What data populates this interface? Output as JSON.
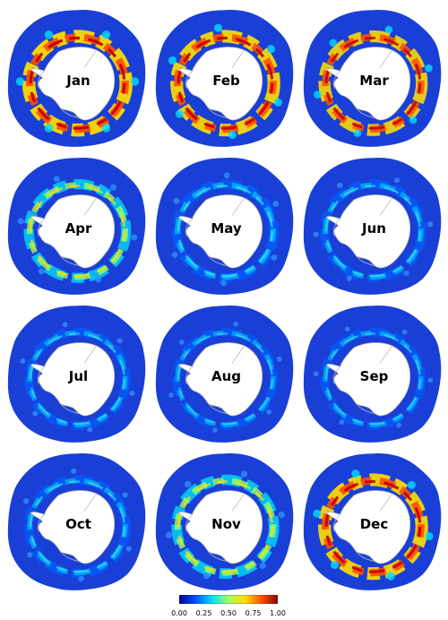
{
  "panels": [
    {
      "month": "Jan",
      "intensity": 0.95
    },
    {
      "month": "Feb",
      "intensity": 0.9
    },
    {
      "month": "Mar",
      "intensity": 0.8
    },
    {
      "month": "Apr",
      "intensity": 0.55
    },
    {
      "month": "May",
      "intensity": 0.5
    },
    {
      "month": "Jun",
      "intensity": 0.4
    },
    {
      "month": "Jul",
      "intensity": 0.35
    },
    {
      "month": "Aug",
      "intensity": 0.3
    },
    {
      "month": "Sep",
      "intensity": 0.3
    },
    {
      "month": "Oct",
      "intensity": 0.4
    },
    {
      "month": "Nov",
      "intensity": 0.6
    },
    {
      "month": "Dec",
      "intensity": 0.9
    }
  ],
  "colorbar": {
    "ticks": [
      "0.00",
      "0.25",
      "0.50",
      "0.75",
      "1.00"
    ],
    "colors": [
      "#00008f",
      "#0050ff",
      "#00dfff",
      "#9fff60",
      "#ffdf00",
      "#ff5000",
      "#8f0000"
    ]
  },
  "colors": {
    "ocean": "#1a3fd6",
    "continent": "#ffffff",
    "coastline": "#b9b9b9"
  }
}
